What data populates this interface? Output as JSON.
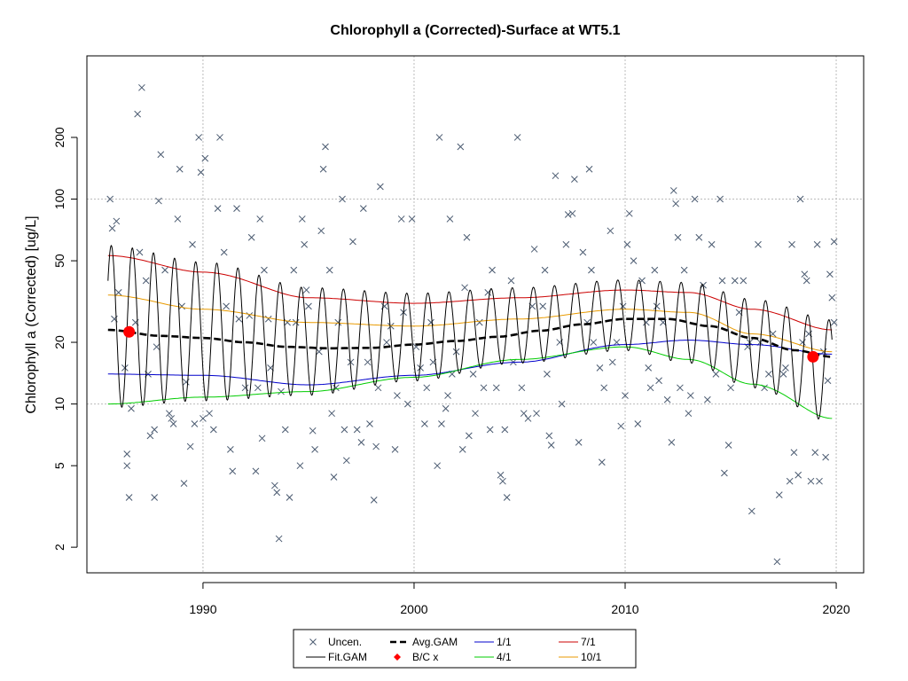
{
  "chart_data": {
    "type": "scatter",
    "title": "Chlorophyll a (Corrected)-Surface at WT5.1",
    "xlabel": "",
    "ylabel": "Chlorophyll a (Corrected) [ug/L]",
    "y_scale": "log",
    "xlim": [
      1984.5,
      2021.3
    ],
    "ylim": [
      1.5,
      500
    ],
    "x_ticks": [
      1990,
      2000,
      2010,
      2020
    ],
    "y_ticks": [
      2,
      5,
      10,
      20,
      50,
      100,
      200
    ],
    "grid": true,
    "legend_position": "bottom",
    "colors": {
      "points": "#4a5a70",
      "fit": "#000000",
      "avg": "#000000",
      "bc": "#ff0000",
      "q1_1": "#0000cc",
      "q4_1": "#00cc00",
      "q7_1": "#cc0000",
      "q10_1": "#e89a00",
      "grid": "#bbbbbb"
    },
    "legend": [
      {
        "key": "uncen",
        "label": "Uncen."
      },
      {
        "key": "avg",
        "label": "Avg.GAM"
      },
      {
        "key": "q1_1",
        "label": "1/1"
      },
      {
        "key": "q7_1",
        "label": "7/1"
      },
      {
        "key": "fit",
        "label": "Fit.GAM"
      },
      {
        "key": "bc",
        "label": "B/C x"
      },
      {
        "key": "q4_1",
        "label": "4/1"
      },
      {
        "key": "q10_1",
        "label": "10/1"
      }
    ],
    "fit_gam": {
      "start": 1985.5,
      "end": 2019.8,
      "period": 1.0
    },
    "series": [
      {
        "name": "Avg.GAM",
        "x": [
          1985.5,
          1988,
          1990,
          1992,
          1994,
          1996,
          1998,
          2000,
          2002,
          2004,
          2006,
          2008,
          2010,
          2012,
          2014,
          2016,
          2018,
          2019.8
        ],
        "y": [
          23,
          21.5,
          21,
          20,
          19,
          18.7,
          18.8,
          19.5,
          20.3,
          21.3,
          22.8,
          24.5,
          26,
          26,
          24,
          21,
          18.3,
          17
        ]
      },
      {
        "name": "1/1",
        "x": [
          1985.5,
          1990,
          1995,
          2000,
          2005,
          2010,
          2013,
          2016,
          2019.8
        ],
        "y": [
          14,
          13.8,
          12.4,
          13.8,
          16,
          19.5,
          20.5,
          19.5,
          17.5
        ]
      },
      {
        "name": "4/1",
        "x": [
          1985.5,
          1990,
          1995,
          2000,
          2005,
          2010,
          2013,
          2016,
          2019.8
        ],
        "y": [
          10,
          10.8,
          11.5,
          13.5,
          16.5,
          19,
          16.5,
          12.5,
          8.5
        ]
      },
      {
        "name": "7/1",
        "x": [
          1985.5,
          1990,
          1995,
          2000,
          2005,
          2010,
          2013,
          2016,
          2019.8
        ],
        "y": [
          53,
          44,
          33,
          31,
          33,
          36,
          35,
          29,
          23
        ]
      },
      {
        "name": "10/1",
        "x": [
          1985.5,
          1990,
          1995,
          2000,
          2005,
          2010,
          2013,
          2016,
          2019.8
        ],
        "y": [
          34,
          29,
          25,
          24,
          26,
          29,
          28,
          22,
          18
        ]
      },
      {
        "name": "B/C x",
        "x": [
          1986.5,
          2018.9
        ],
        "y": [
          22.5,
          17
        ]
      }
    ],
    "points": [
      [
        1985.6,
        100
      ],
      [
        1985.7,
        72
      ],
      [
        1985.9,
        78
      ],
      [
        1985.8,
        26
      ],
      [
        1986.0,
        35
      ],
      [
        1986.3,
        15
      ],
      [
        1986.4,
        5.7
      ],
      [
        1986.4,
        5
      ],
      [
        1986.5,
        3.5
      ],
      [
        1986.6,
        9.5
      ],
      [
        1986.8,
        25
      ],
      [
        1986.9,
        260
      ],
      [
        1987.0,
        55
      ],
      [
        1987.1,
        350
      ],
      [
        1987.3,
        40
      ],
      [
        1987.4,
        14
      ],
      [
        1987.5,
        7
      ],
      [
        1987.7,
        3.5
      ],
      [
        1987.7,
        7.5
      ],
      [
        1987.8,
        19
      ],
      [
        1987.9,
        98
      ],
      [
        1988.0,
        165
      ],
      [
        1988.2,
        45
      ],
      [
        1988.4,
        9
      ],
      [
        1988.5,
        8.5
      ],
      [
        1988.6,
        8
      ],
      [
        1988.8,
        80
      ],
      [
        1988.9,
        140
      ],
      [
        1989.0,
        30
      ],
      [
        1989.1,
        4.1
      ],
      [
        1989.2,
        12.8
      ],
      [
        1989.4,
        6.2
      ],
      [
        1989.5,
        60
      ],
      [
        1989.6,
        8
      ],
      [
        1989.8,
        200
      ],
      [
        1989.9,
        135
      ],
      [
        1990.0,
        8.5
      ],
      [
        1990.1,
        158
      ],
      [
        1990.3,
        9
      ],
      [
        1990.5,
        7.5
      ],
      [
        1990.7,
        90
      ],
      [
        1990.8,
        200
      ],
      [
        1991.0,
        55
      ],
      [
        1991.1,
        30
      ],
      [
        1991.3,
        6
      ],
      [
        1991.4,
        4.7
      ],
      [
        1991.6,
        90
      ],
      [
        1991.7,
        26
      ],
      [
        1992.0,
        12
      ],
      [
        1992.2,
        27
      ],
      [
        1992.3,
        65
      ],
      [
        1992.5,
        4.7
      ],
      [
        1992.6,
        12
      ],
      [
        1992.7,
        80
      ],
      [
        1992.8,
        6.8
      ],
      [
        1992.9,
        45
      ],
      [
        1993.1,
        26
      ],
      [
        1993.2,
        15
      ],
      [
        1993.4,
        4
      ],
      [
        1993.5,
        3.7
      ],
      [
        1993.6,
        2.2
      ],
      [
        1993.7,
        11.5
      ],
      [
        1993.9,
        7.5
      ],
      [
        1994.0,
        25
      ],
      [
        1994.1,
        3.5
      ],
      [
        1994.3,
        45
      ],
      [
        1994.4,
        25
      ],
      [
        1994.6,
        5
      ],
      [
        1994.7,
        80
      ],
      [
        1994.8,
        60
      ],
      [
        1994.9,
        36
      ],
      [
        1995.0,
        30
      ],
      [
        1995.2,
        7.4
      ],
      [
        1995.3,
        6
      ],
      [
        1995.5,
        18
      ],
      [
        1995.6,
        70
      ],
      [
        1995.7,
        140
      ],
      [
        1995.8,
        180
      ],
      [
        1996.0,
        45
      ],
      [
        1996.1,
        9
      ],
      [
        1996.2,
        4.4
      ],
      [
        1996.3,
        12
      ],
      [
        1996.4,
        25
      ],
      [
        1996.6,
        100
      ],
      [
        1996.7,
        7.5
      ],
      [
        1996.8,
        5.3
      ],
      [
        1997.0,
        16
      ],
      [
        1997.1,
        62
      ],
      [
        1997.3,
        7.5
      ],
      [
        1997.5,
        6.5
      ],
      [
        1997.6,
        90
      ],
      [
        1997.8,
        16
      ],
      [
        1997.9,
        8
      ],
      [
        1998.1,
        3.4
      ],
      [
        1998.2,
        6.2
      ],
      [
        1998.3,
        12
      ],
      [
        1998.4,
        115
      ],
      [
        1998.6,
        30
      ],
      [
        1998.7,
        20
      ],
      [
        1998.9,
        24
      ],
      [
        1999.1,
        6
      ],
      [
        1999.2,
        11
      ],
      [
        1999.4,
        80
      ],
      [
        1999.5,
        28
      ],
      [
        1999.7,
        10
      ],
      [
        1999.9,
        80
      ],
      [
        2000.1,
        19
      ],
      [
        2000.3,
        15
      ],
      [
        2000.5,
        8
      ],
      [
        2000.6,
        12
      ],
      [
        2000.8,
        25
      ],
      [
        2000.9,
        16
      ],
      [
        2001.1,
        5
      ],
      [
        2001.2,
        200
      ],
      [
        2001.3,
        8
      ],
      [
        2001.5,
        9.5
      ],
      [
        2001.6,
        11
      ],
      [
        2001.7,
        80
      ],
      [
        2001.8,
        14
      ],
      [
        2002.0,
        18
      ],
      [
        2002.2,
        180
      ],
      [
        2002.3,
        6
      ],
      [
        2002.4,
        37
      ],
      [
        2002.5,
        65
      ],
      [
        2002.6,
        7
      ],
      [
        2002.8,
        14
      ],
      [
        2002.9,
        9
      ],
      [
        2003.1,
        25
      ],
      [
        2003.3,
        12
      ],
      [
        2003.5,
        35
      ],
      [
        2003.6,
        7.5
      ],
      [
        2003.7,
        45
      ],
      [
        2003.9,
        12
      ],
      [
        2004.1,
        4.5
      ],
      [
        2004.2,
        4.2
      ],
      [
        2004.3,
        7.5
      ],
      [
        2004.4,
        3.5
      ],
      [
        2004.6,
        40
      ],
      [
        2004.7,
        16
      ],
      [
        2004.9,
        200
      ],
      [
        2005.1,
        12
      ],
      [
        2005.2,
        9
      ],
      [
        2005.4,
        8.5
      ],
      [
        2005.6,
        30
      ],
      [
        2005.7,
        57
      ],
      [
        2005.8,
        9
      ],
      [
        2006.1,
        30
      ],
      [
        2006.2,
        45
      ],
      [
        2006.3,
        14
      ],
      [
        2006.4,
        7
      ],
      [
        2006.5,
        6.3
      ],
      [
        2006.7,
        130
      ],
      [
        2006.9,
        20
      ],
      [
        2007.0,
        10
      ],
      [
        2007.2,
        60
      ],
      [
        2007.3,
        84
      ],
      [
        2007.5,
        85
      ],
      [
        2007.6,
        125
      ],
      [
        2007.8,
        6.5
      ],
      [
        2008.0,
        55
      ],
      [
        2008.2,
        25
      ],
      [
        2008.3,
        140
      ],
      [
        2008.4,
        45
      ],
      [
        2008.5,
        20
      ],
      [
        2008.8,
        15
      ],
      [
        2008.9,
        5.2
      ],
      [
        2009.0,
        12
      ],
      [
        2009.3,
        70
      ],
      [
        2009.4,
        16
      ],
      [
        2009.6,
        20
      ],
      [
        2009.8,
        7.8
      ],
      [
        2009.9,
        30
      ],
      [
        2010.0,
        11
      ],
      [
        2010.1,
        60
      ],
      [
        2010.2,
        85
      ],
      [
        2010.4,
        50
      ],
      [
        2010.6,
        8
      ],
      [
        2010.8,
        40
      ],
      [
        2011.0,
        25
      ],
      [
        2011.1,
        15
      ],
      [
        2011.2,
        12
      ],
      [
        2011.4,
        45
      ],
      [
        2011.5,
        30
      ],
      [
        2011.6,
        13
      ],
      [
        2011.8,
        25
      ],
      [
        2012.0,
        10.5
      ],
      [
        2012.2,
        6.5
      ],
      [
        2012.3,
        110
      ],
      [
        2012.4,
        95
      ],
      [
        2012.5,
        65
      ],
      [
        2012.6,
        12
      ],
      [
        2012.8,
        45
      ],
      [
        2013.0,
        9
      ],
      [
        2013.1,
        11
      ],
      [
        2013.3,
        100
      ],
      [
        2013.5,
        65
      ],
      [
        2013.7,
        38
      ],
      [
        2013.9,
        10.5
      ],
      [
        2014.1,
        60
      ],
      [
        2014.3,
        14
      ],
      [
        2014.5,
        100
      ],
      [
        2014.6,
        40
      ],
      [
        2014.7,
        4.6
      ],
      [
        2014.9,
        6.3
      ],
      [
        2015.0,
        12
      ],
      [
        2015.2,
        40
      ],
      [
        2015.4,
        28
      ],
      [
        2015.6,
        40
      ],
      [
        2015.8,
        19
      ],
      [
        2015.9,
        20
      ],
      [
        2016.0,
        3
      ],
      [
        2016.3,
        60
      ],
      [
        2016.4,
        20
      ],
      [
        2016.6,
        12
      ],
      [
        2016.8,
        14
      ],
      [
        2017.0,
        22
      ],
      [
        2017.2,
        1.7
      ],
      [
        2017.3,
        3.6
      ],
      [
        2017.5,
        14
      ],
      [
        2017.6,
        15
      ],
      [
        2017.8,
        4.2
      ],
      [
        2017.9,
        60
      ],
      [
        2018.0,
        5.8
      ],
      [
        2018.2,
        4.5
      ],
      [
        2018.3,
        100
      ],
      [
        2018.4,
        20
      ],
      [
        2018.5,
        43
      ],
      [
        2018.6,
        40
      ],
      [
        2018.7,
        22
      ],
      [
        2018.8,
        4.2
      ],
      [
        2019.0,
        5.8
      ],
      [
        2019.1,
        60
      ],
      [
        2019.2,
        4.2
      ],
      [
        2019.4,
        18
      ],
      [
        2019.5,
        5.5
      ],
      [
        2019.6,
        13
      ],
      [
        2019.7,
        43
      ],
      [
        2019.8,
        33
      ],
      [
        2019.9,
        62
      ],
      [
        2019.9,
        25
      ]
    ]
  }
}
